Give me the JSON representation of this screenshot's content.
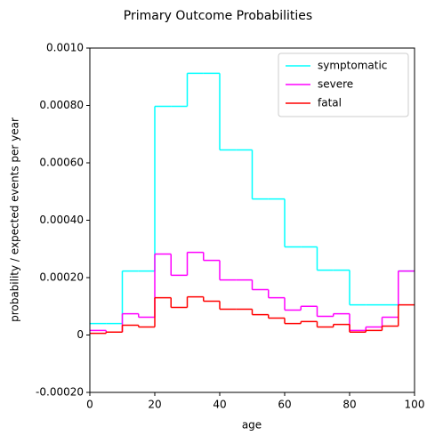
{
  "chart_data": {
    "type": "step",
    "title": "Primary Outcome Probabilities",
    "xlabel": "age",
    "ylabel": "probability / expected events per year",
    "x": [
      0,
      5,
      10,
      15,
      20,
      25,
      30,
      35,
      40,
      45,
      50,
      55,
      60,
      65,
      70,
      75,
      80,
      85,
      90,
      95
    ],
    "series": [
      {
        "name": "symptomatic",
        "color": "#00ffff",
        "values": [
          4e-05,
          4e-05,
          0.000223,
          0.000223,
          0.000797,
          0.000797,
          0.000912,
          0.000912,
          0.000645,
          0.000645,
          0.000474,
          0.000474,
          0.000307,
          0.000307,
          0.000226,
          0.000226,
          0.000105,
          0.000105,
          0.000105,
          0.000223
        ]
      },
      {
        "name": "severe",
        "color": "#ff00ff",
        "values": [
          1.6e-05,
          1e-05,
          7.4e-05,
          6.2e-05,
          0.000282,
          0.000208,
          0.000288,
          0.00026,
          0.000192,
          0.000192,
          0.000158,
          0.00013,
          8.7e-05,
          0.0001,
          6.5e-05,
          7.4e-05,
          1.6e-05,
          2.8e-05,
          6.2e-05,
          0.000223
        ]
      },
      {
        "name": "fatal",
        "color": "#ff0000",
        "values": [
          6e-06,
          1e-05,
          3.4e-05,
          2.8e-05,
          0.00013,
          9.6e-05,
          0.000133,
          0.000118,
          9e-05,
          9e-05,
          7.1e-05,
          5.9e-05,
          4e-05,
          4.7e-05,
          2.8e-05,
          3.7e-05,
          1e-05,
          1.6e-05,
          3.1e-05,
          0.000105
        ]
      }
    ],
    "xlim": [
      0,
      100
    ],
    "xticks": [
      0,
      20,
      40,
      60,
      80,
      100
    ],
    "ylim": [
      -0.0002,
      0.001
    ],
    "yticks": [
      {
        "value": -0.0002,
        "label": "-0.00020"
      },
      0,
      {
        "value": 0.0002,
        "label": "0.00020"
      },
      {
        "value": 0.0004,
        "label": "0.00040"
      },
      {
        "value": 0.0006,
        "label": "0.00060"
      },
      {
        "value": 0.0008,
        "label": "0.00080"
      },
      {
        "value": 0.001,
        "label": "0.0010"
      }
    ],
    "legend": "upper right"
  }
}
